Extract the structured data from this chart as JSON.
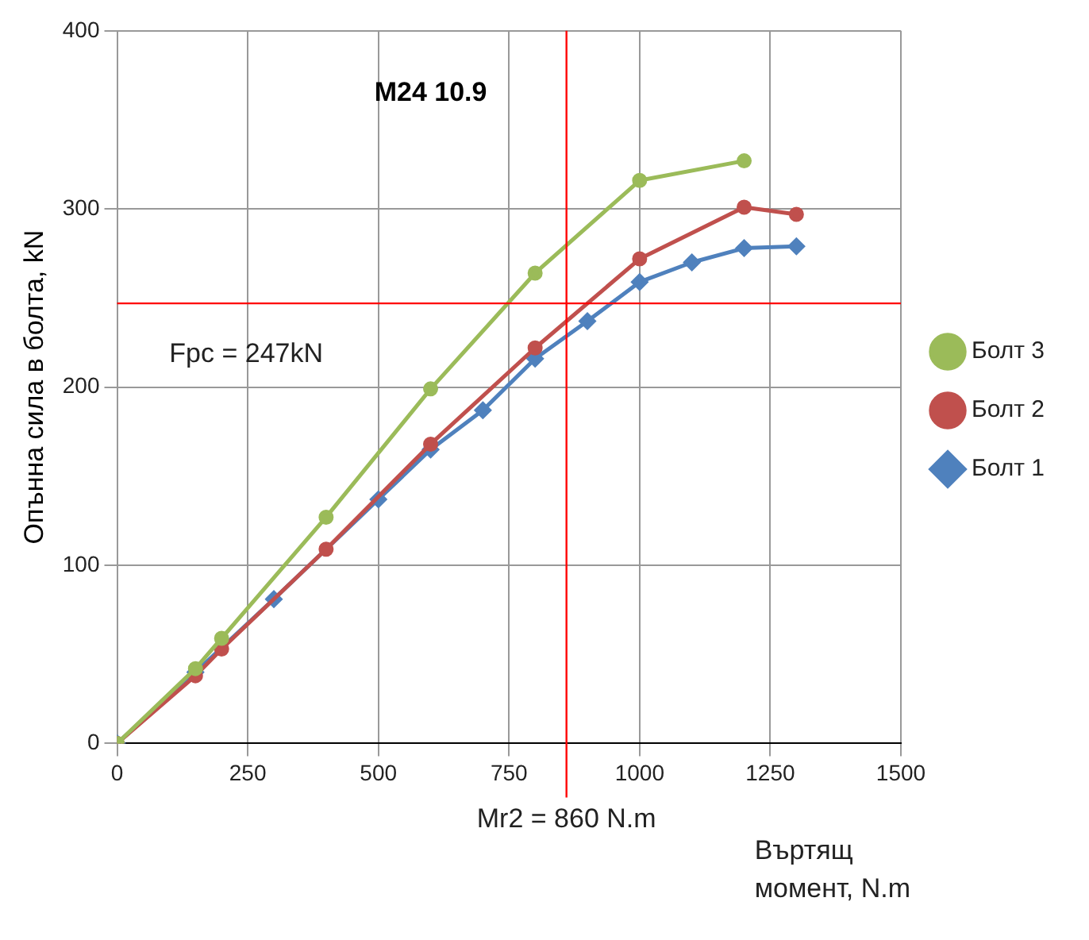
{
  "chart_data": {
    "type": "line",
    "title": "M24 10.9",
    "xlabel": "Въртящ момент, N.m",
    "ylabel": "Опънна сила в болта, kN",
    "xlim": [
      0,
      1500
    ],
    "xticks": [
      0,
      250,
      500,
      750,
      1000,
      1250,
      1500
    ],
    "ylim": [
      0,
      400
    ],
    "yticks": [
      0,
      100,
      200,
      300,
      400
    ],
    "grid": true,
    "legend": "right",
    "line_style": "solid",
    "series": [
      {
        "name": "Болт 1",
        "color": "#4f81bd",
        "marker": "diamond",
        "x": [
          0,
          150,
          300,
          500,
          600,
          700,
          800,
          900,
          1000,
          1100,
          1200,
          1300
        ],
        "values": [
          0,
          40,
          81,
          137,
          165,
          187,
          216,
          237,
          259,
          270,
          278,
          279
        ]
      },
      {
        "name": "Болт 2",
        "color": "#c0504d",
        "marker": "circle",
        "x": [
          0,
          150,
          200,
          400,
          600,
          800,
          1000,
          1200,
          1300
        ],
        "values": [
          0,
          38,
          53,
          109,
          168,
          222,
          272,
          301,
          297
        ]
      },
      {
        "name": "Болт 3",
        "color": "#9bbb59",
        "marker": "circle",
        "x": [
          0,
          150,
          200,
          400,
          600,
          800,
          1000,
          1200
        ],
        "values": [
          0,
          42,
          59,
          127,
          199,
          264,
          316,
          327
        ]
      }
    ],
    "ref_lines": [
      {
        "axis": "y",
        "value": 247,
        "label": "Fpc = 247kN",
        "color": "#ff0000"
      },
      {
        "axis": "x",
        "value": 860,
        "label": "Mr2 = 860 N.m",
        "color": "#ff0000"
      }
    ]
  }
}
